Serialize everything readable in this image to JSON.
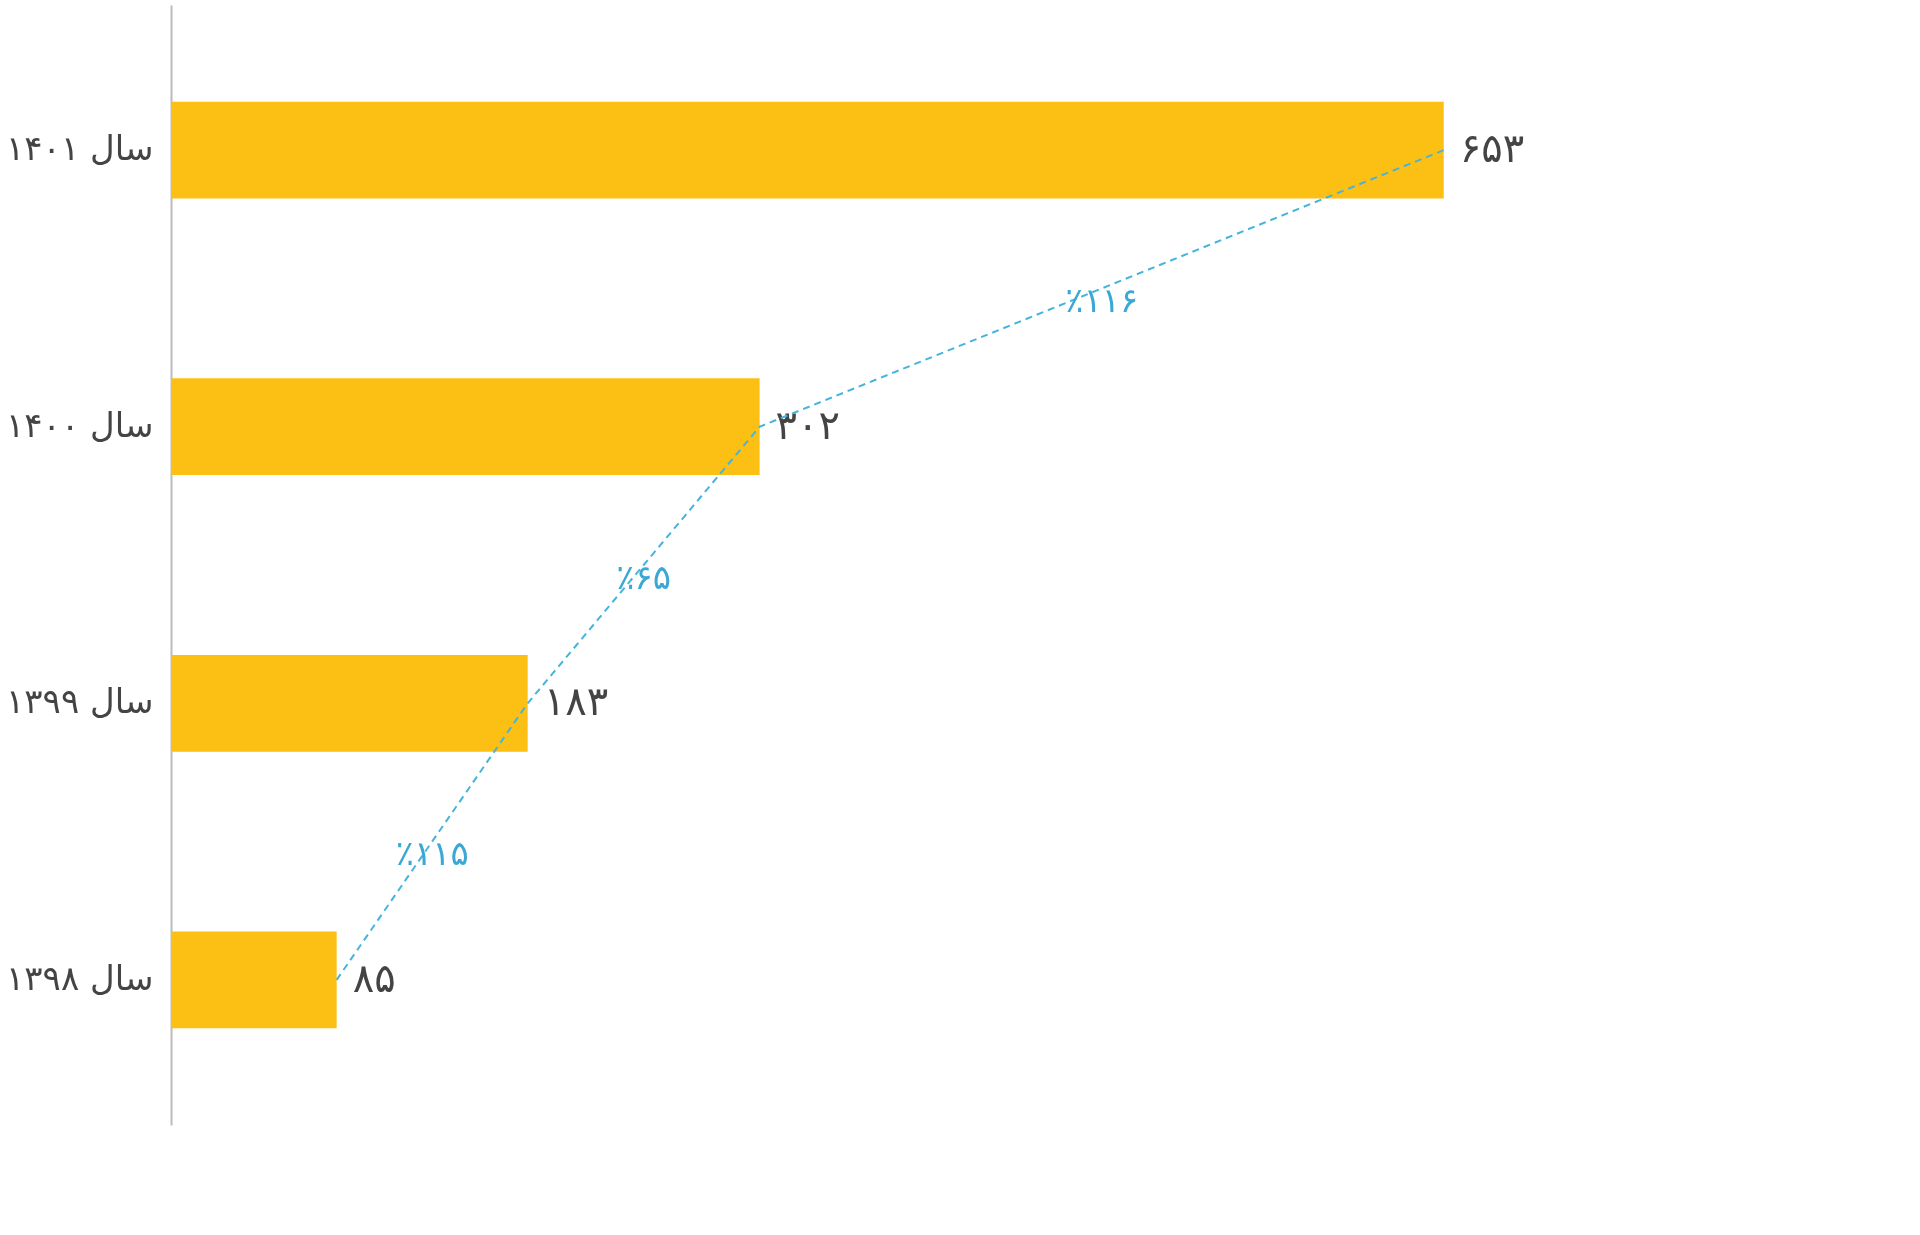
{
  "chart_data": {
    "type": "bar",
    "orientation": "horizontal",
    "categories": [
      "سال ۱۴۰۱",
      "سال ۱۴۰۰",
      "سال ۱۳۹۹",
      "سال ۱۳۹۸"
    ],
    "series": [
      {
        "color": "#fcbf14",
        "values": [
          653,
          302,
          183,
          85
        ],
        "value_labels": [
          "۶۵۳",
          "۳۰۲",
          "۱۸۳",
          "۸۵"
        ]
      },
      {
        "type": "line",
        "color": "#45b4dc",
        "line_style": "dashed",
        "marker": "none",
        "values": [
          653,
          302,
          183,
          85
        ]
      }
    ],
    "annotations": [
      "٪۱۱۶",
      "٪۶۵",
      "٪۱۱۵"
    ],
    "grid": false,
    "tick_labels": "y"
  }
}
